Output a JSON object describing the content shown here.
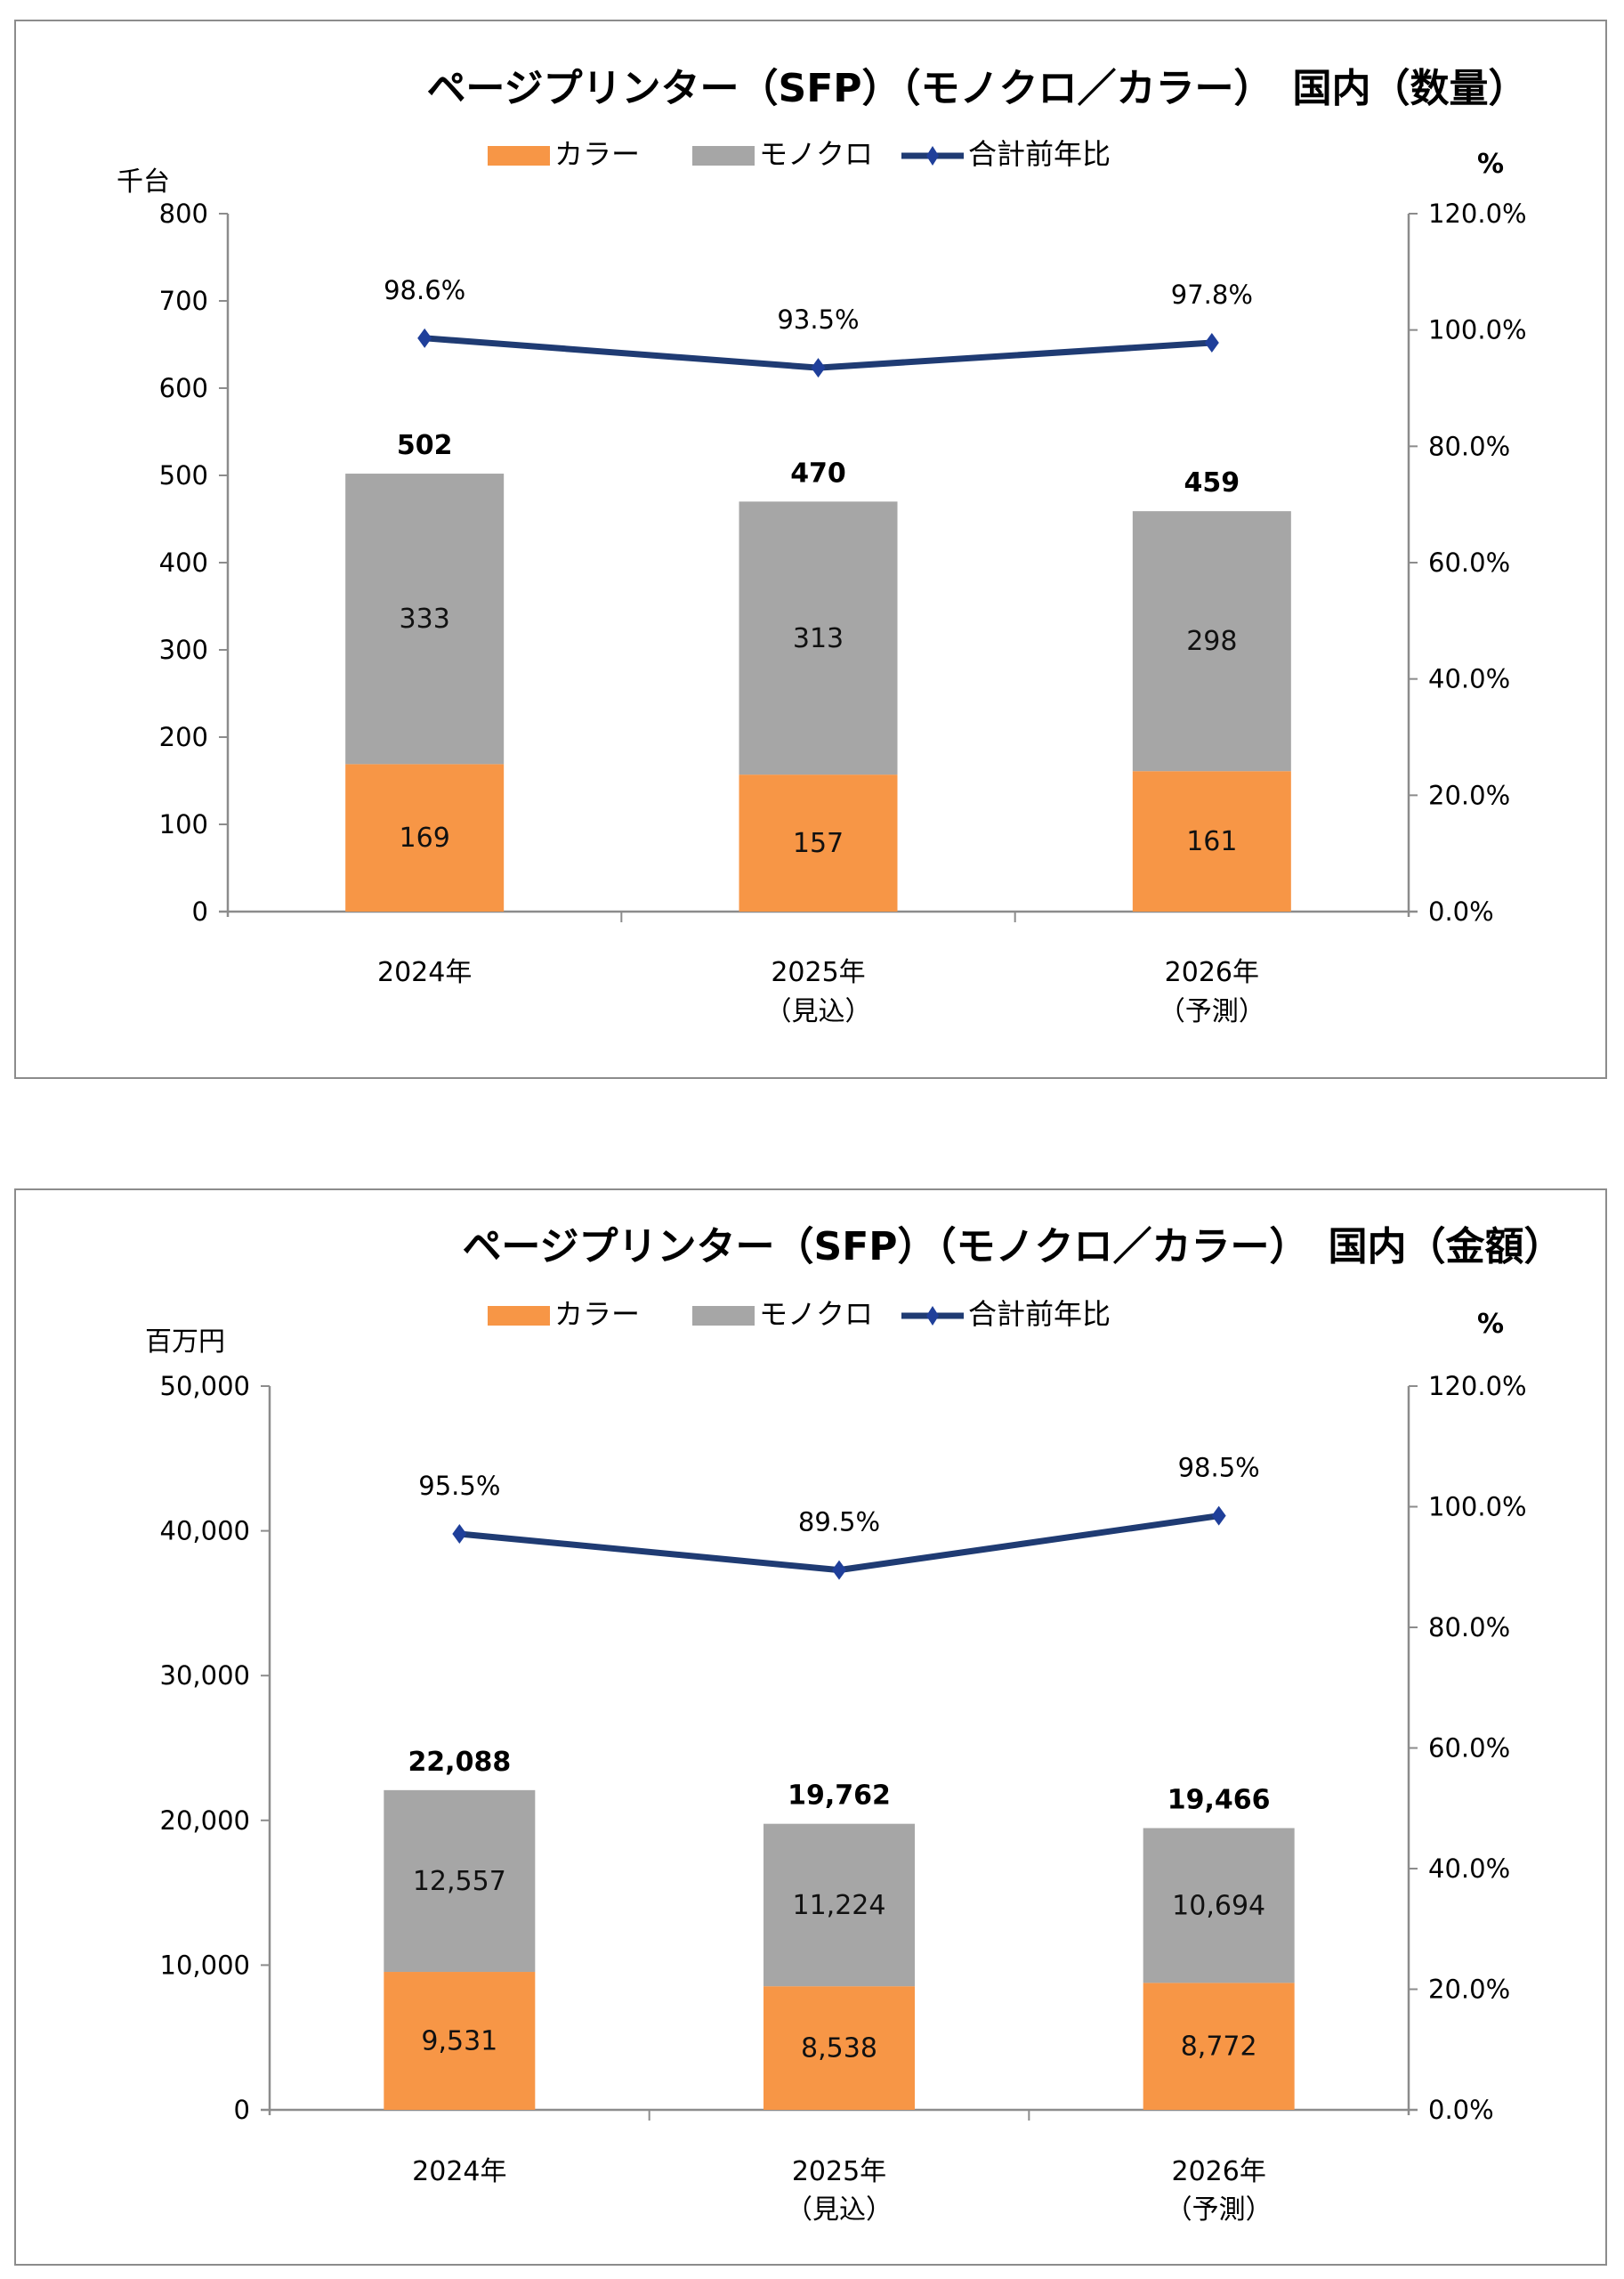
{
  "chart_data": [
    {
      "type": "bar",
      "stacked": true,
      "title": "ページプリンター（SFP）（モノクロ／カラー）　国内（数量）",
      "ylabel": "千台",
      "y2label": "%",
      "ylim": [
        0,
        800
      ],
      "yticks": [
        "0",
        "100",
        "200",
        "300",
        "400",
        "500",
        "600",
        "700",
        "800"
      ],
      "yticks_values": [
        0,
        100,
        200,
        300,
        400,
        500,
        600,
        700,
        800
      ],
      "y2lim": [
        0,
        120
      ],
      "y2ticks": [
        "0.0%",
        "20.0%",
        "40.0%",
        "60.0%",
        "80.0%",
        "100.0%",
        "120.0%"
      ],
      "y2ticks_values": [
        0,
        20,
        40,
        60,
        80,
        100,
        120
      ],
      "categories": [
        {
          "line1": "2024年",
          "line2": ""
        },
        {
          "line1": "2025年",
          "line2": "（見込）"
        },
        {
          "line1": "2026年",
          "line2": "（予測）"
        }
      ],
      "legend_position": "top-center",
      "legend": [
        "カラー",
        "モノクロ",
        "合計前年比"
      ],
      "series": [
        {
          "name": "カラー",
          "type": "bar",
          "color": "#F79646",
          "values": [
            169,
            157,
            161
          ],
          "labels": [
            "169",
            "157",
            "161"
          ]
        },
        {
          "name": "モノクロ",
          "type": "bar",
          "color": "#A6A6A6",
          "values": [
            333,
            313,
            298
          ],
          "labels": [
            "333",
            "313",
            "298"
          ]
        },
        {
          "name": "合計前年比",
          "type": "line",
          "axis": "right",
          "color": "#1F3B73",
          "marker": "diamond",
          "values": [
            98.6,
            93.5,
            97.8
          ],
          "labels": [
            "98.6%",
            "93.5%",
            "97.8%"
          ]
        }
      ],
      "totals": [
        502,
        470,
        459
      ],
      "total_labels": [
        "502",
        "470",
        "459"
      ],
      "grid": false
    },
    {
      "type": "bar",
      "stacked": true,
      "title": "ページプリンター（SFP）（モノクロ／カラー）　国内（金額）",
      "ylabel": "百万円",
      "y2label": "%",
      "ylim": [
        0,
        50000
      ],
      "yticks": [
        "0",
        "10,000",
        "20,000",
        "30,000",
        "40,000",
        "50,000"
      ],
      "yticks_values": [
        0,
        10000,
        20000,
        30000,
        40000,
        50000
      ],
      "y2lim": [
        0,
        120
      ],
      "y2ticks": [
        "0.0%",
        "20.0%",
        "40.0%",
        "60.0%",
        "80.0%",
        "100.0%",
        "120.0%"
      ],
      "y2ticks_values": [
        0,
        20,
        40,
        60,
        80,
        100,
        120
      ],
      "categories": [
        {
          "line1": "2024年",
          "line2": ""
        },
        {
          "line1": "2025年",
          "line2": "（見込）"
        },
        {
          "line1": "2026年",
          "line2": "（予測）"
        }
      ],
      "legend_position": "top-center",
      "legend": [
        "カラー",
        "モノクロ",
        "合計前年比"
      ],
      "series": [
        {
          "name": "カラー",
          "type": "bar",
          "color": "#F79646",
          "values": [
            9531,
            8538,
            8772
          ],
          "labels": [
            "9,531",
            "8,538",
            "8,772"
          ]
        },
        {
          "name": "モノクロ",
          "type": "bar",
          "color": "#A6A6A6",
          "values": [
            12557,
            11224,
            10694
          ],
          "labels": [
            "12,557",
            "11,224",
            "10,694"
          ]
        },
        {
          "name": "合計前年比",
          "type": "line",
          "axis": "right",
          "color": "#1F3B73",
          "marker": "diamond",
          "values": [
            95.5,
            89.5,
            98.5
          ],
          "labels": [
            "95.5%",
            "89.5%",
            "98.5%"
          ]
        }
      ],
      "totals": [
        22088,
        19762,
        19466
      ],
      "total_labels": [
        "22,088",
        "19,762",
        "19,466"
      ],
      "grid": false
    }
  ]
}
